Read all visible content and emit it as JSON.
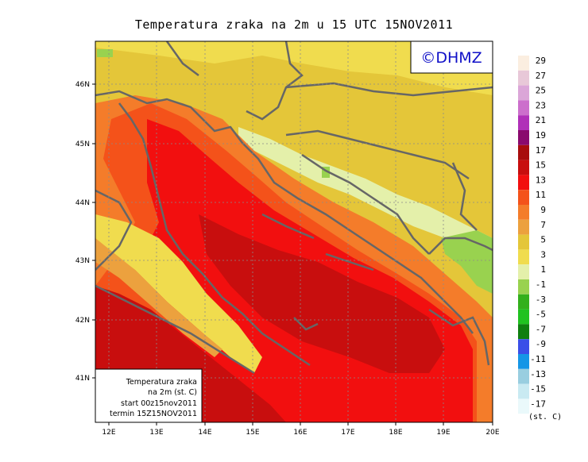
{
  "title": "Temperatura zraka na 2m u 15 UTC 15NOV2011",
  "logo": "©DHMZ",
  "info_box": [
    "Temperatura zraka",
    "na 2m (st. C)",
    "start 00z15nov2011",
    "termin 15Z15NOV2011"
  ],
  "lon_ticks": [
    "12E",
    "13E",
    "14E",
    "15E",
    "16E",
    "17E",
    "18E",
    "19E",
    "20E"
  ],
  "lat_ticks": [
    "46N",
    "45N",
    "44N",
    "43N",
    "42N",
    "41N"
  ],
  "legend": {
    "unit": "(st. C)",
    "levels": [
      "29",
      "27",
      "25",
      "23",
      "21",
      "19",
      "17",
      "15",
      "13",
      "11",
      "9",
      "7",
      "5",
      "3",
      "1",
      "-1",
      "-3",
      "-5",
      "-7",
      "-9",
      "-11",
      "-13",
      "-15",
      "-17"
    ],
    "colors": [
      "#fbeee0",
      "#e8c8d8",
      "#dba6d8",
      "#cc6fcc",
      "#b030b8",
      "#8a0a6e",
      "#a80d0d",
      "#c80e0e",
      "#f20f0f",
      "#f4521a",
      "#f47c2a",
      "#eca13e",
      "#e4c639",
      "#f0dc4e",
      "#e4f0aa",
      "#99d24f",
      "#33b01c",
      "#20c220",
      "#0f7f0f",
      "#3a4fe8",
      "#1496e6",
      "#99cee0",
      "#c9eaf2",
      "#eaf9fb"
    ]
  }
}
